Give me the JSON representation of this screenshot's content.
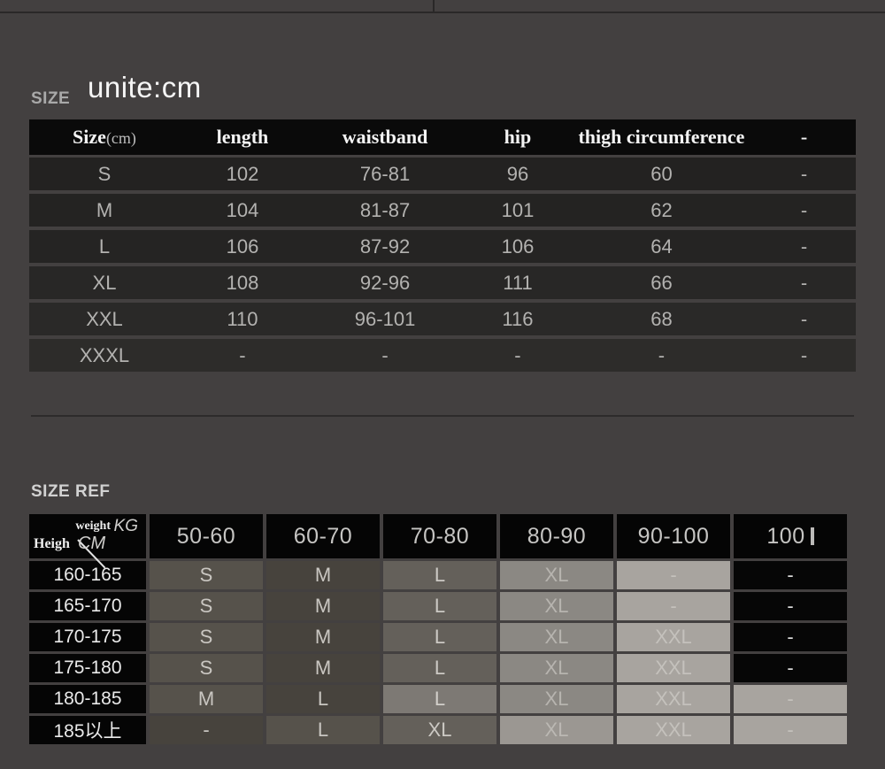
{
  "colors": {
    "page_bg": "#434040",
    "table_header_bg": "#0a0a0a",
    "row_bg": "#252423",
    "data_text": "#b3b2b0",
    "shade_palette": [
      "#060606",
      "#47433d",
      "#56524b",
      "#64605a",
      "#7d7974",
      "#8b8883",
      "#9b9792",
      "#a8a49f"
    ]
  },
  "size_section": {
    "label": "SIZE",
    "unit_label": "unite:cm",
    "table1": {
      "header": {
        "col0_main": "Size",
        "col0_sub": "(cm)",
        "cols": [
          "length",
          "waistband",
          "hip",
          "thigh circumference",
          "-"
        ]
      },
      "rows": [
        [
          "S",
          "102",
          "76-81",
          "96",
          "60",
          "-"
        ],
        [
          "M",
          "104",
          "81-87",
          "101",
          "62",
          "-"
        ],
        [
          "L",
          "106",
          "87-92",
          "106",
          "64",
          "-"
        ],
        [
          "XL",
          "108",
          "92-96",
          "111",
          "66",
          "-"
        ],
        [
          "XXL",
          "110",
          "96-101",
          "116",
          "68",
          "-"
        ],
        [
          "XXXL",
          "-",
          "-",
          "-",
          "-",
          "-"
        ]
      ]
    }
  },
  "size_ref_section": {
    "label": "SIZE REF",
    "table2": {
      "corner": {
        "weight_label": "weight",
        "weight_unit": "KG",
        "height_label": "Heigh",
        "height_unit": "CM"
      },
      "weight_cols": [
        "50-60",
        "60-70",
        "70-80",
        "80-90",
        "90-100",
        "100"
      ],
      "rows": [
        {
          "height": "160-165",
          "cells": [
            "S",
            "M",
            "L",
            "XL",
            "-",
            "-"
          ]
        },
        {
          "height": "165-170",
          "cells": [
            "S",
            "M",
            "L",
            "XL",
            "-",
            "-"
          ]
        },
        {
          "height": "170-175",
          "cells": [
            "S",
            "M",
            "L",
            "XL",
            "XXL",
            "-"
          ]
        },
        {
          "height": "175-180",
          "cells": [
            "S",
            "M",
            "L",
            "XL",
            "XXL",
            "-"
          ]
        },
        {
          "height": "180-185",
          "cells": [
            "M",
            "L",
            "L",
            "XL",
            "XXL",
            "-"
          ]
        },
        {
          "height": "185以上",
          "cells": [
            "-",
            "L",
            "XL",
            "XL",
            "XXL",
            "-"
          ]
        }
      ]
    }
  }
}
